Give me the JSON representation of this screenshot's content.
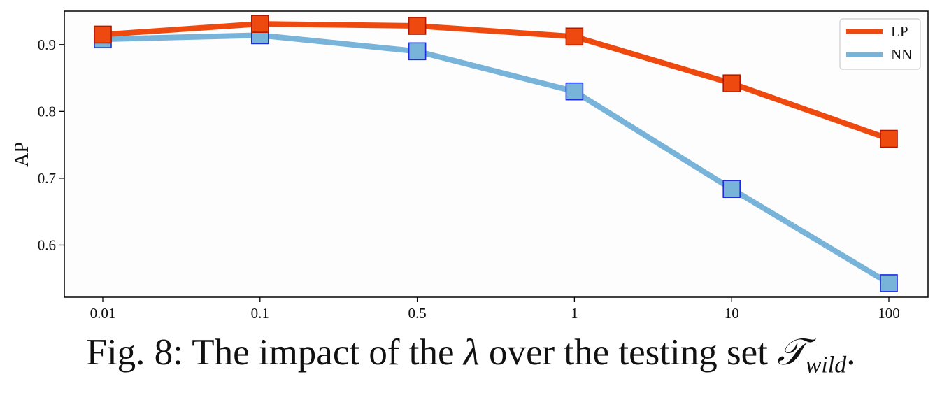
{
  "chart_data": {
    "type": "line",
    "categories": [
      "0.01",
      "0.1",
      "0.5",
      "1",
      "10",
      "100"
    ],
    "series": [
      {
        "name": "LP",
        "color": "#ee4a0f",
        "marker_edge": "#b01800",
        "values": [
          0.915,
          0.931,
          0.928,
          0.912,
          0.842,
          0.759
        ]
      },
      {
        "name": "NN",
        "color": "#78b3d9",
        "marker_edge": "#1f2de0",
        "values": [
          0.908,
          0.914,
          0.89,
          0.83,
          0.684,
          0.543
        ]
      }
    ],
    "ylabel": "AP",
    "xlabel": "",
    "ylim": [
      0.522,
      0.95
    ],
    "yticks": [
      "0.6",
      "0.7",
      "0.8",
      "0.9"
    ],
    "legend_position": "top-right",
    "grid": false
  },
  "caption": {
    "prefix": "Fig. 8: The impact of the ",
    "lambda": "λ",
    "middle": " over the testing set ",
    "set_symbol": "𝒯",
    "set_subscript": "wild",
    "suffix": "."
  }
}
